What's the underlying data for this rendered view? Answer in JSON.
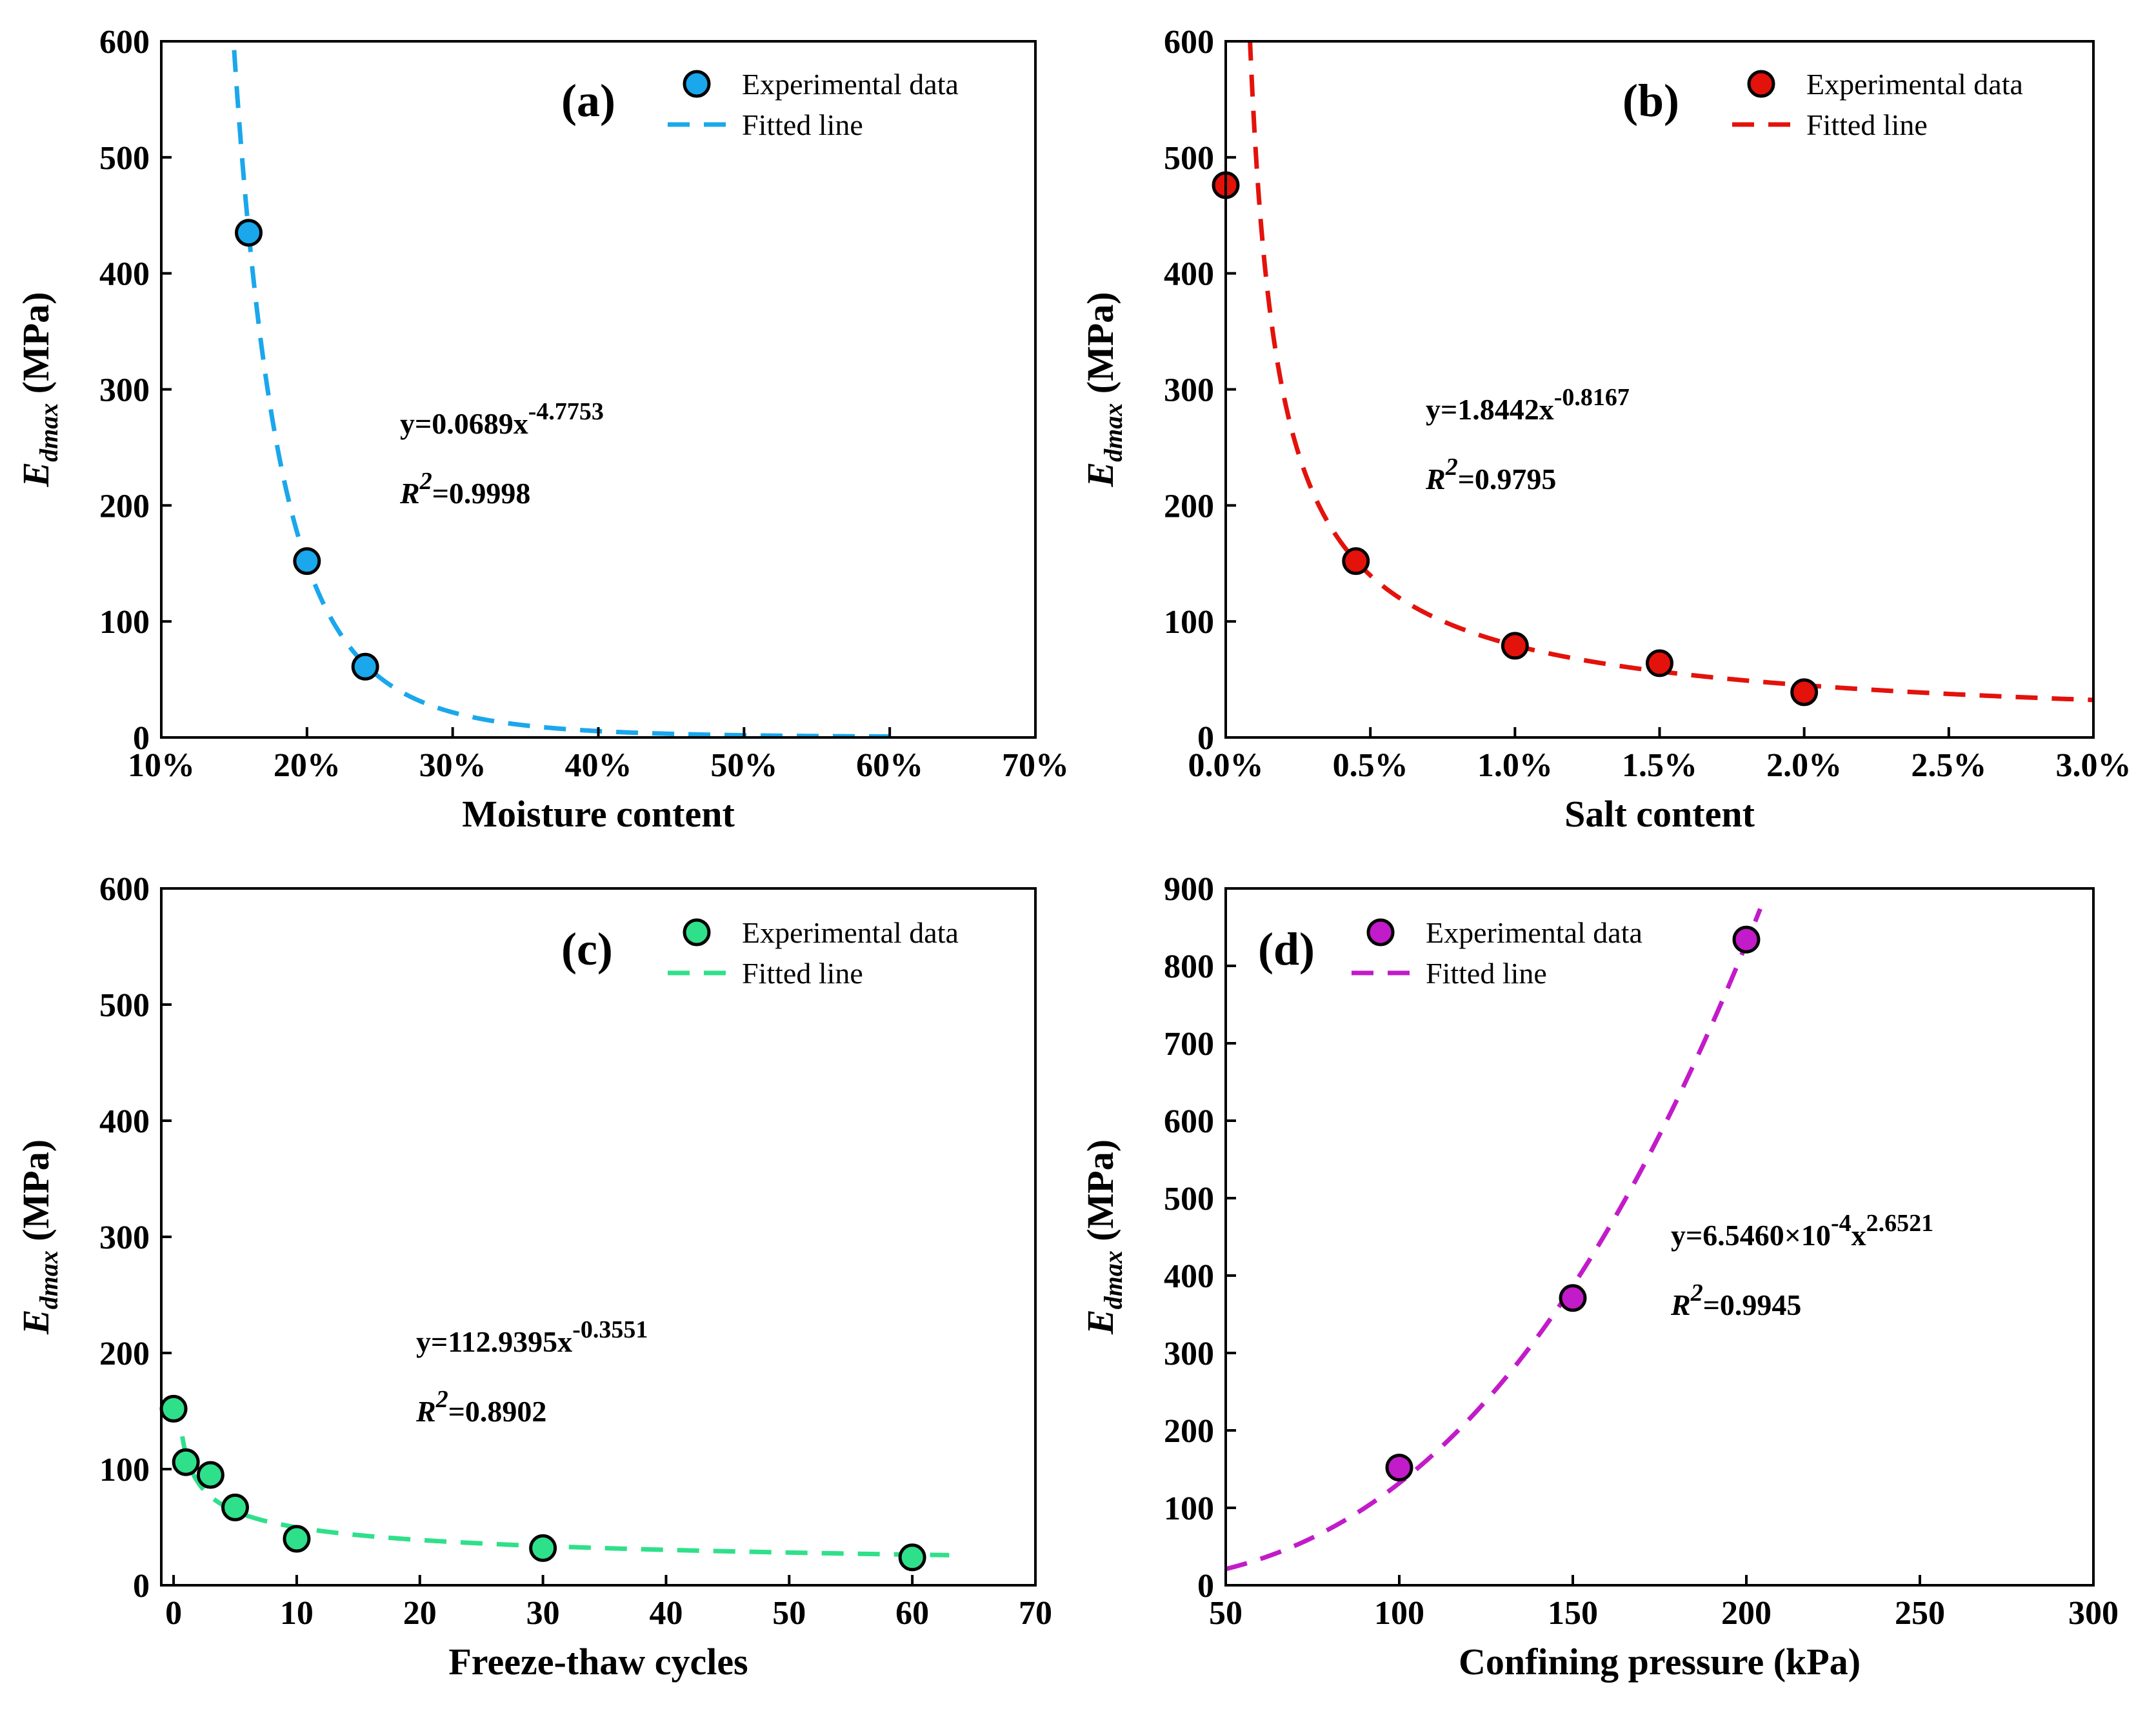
{
  "chart_data": [
    {
      "type": "scatter",
      "panel_label": "(a)",
      "xlabel": "Moisture content",
      "ylabel_main": "E",
      "ylabel_sub": "dmax",
      "ylabel_unit": " (MPa)",
      "xlim": [
        10,
        70
      ],
      "ylim": [
        0,
        600
      ],
      "xticks": [
        10,
        20,
        30,
        40,
        50,
        60,
        70
      ],
      "xtick_labels": [
        "10%",
        "20%",
        "30%",
        "40%",
        "50%",
        "60%",
        "70%"
      ],
      "yticks": [
        0,
        100,
        200,
        300,
        400,
        500,
        600
      ],
      "ytick_labels": [
        "0",
        "100",
        "200",
        "300",
        "400",
        "500",
        "600"
      ],
      "color": "#1AA7EC",
      "legend": [
        "Experimental data",
        "Fitted line"
      ],
      "legend_position": "top-right",
      "series": [
        {
          "name": "Experimental data",
          "x": [
            16,
            20,
            24
          ],
          "y": [
            435,
            152,
            61
          ]
        },
        {
          "name": "Fitted line",
          "style": "dashed",
          "model": "power",
          "scale": 0.01,
          "a": 0.0689,
          "b": -4.7753,
          "x_range": [
            15,
            60
          ]
        }
      ],
      "equation": {
        "y_prefix": "y=0.0689x",
        "exp": "-4.7753",
        "r2_prefix": "R",
        "r2_sup": "2",
        "r2_value": "=0.9998"
      }
    },
    {
      "type": "scatter",
      "panel_label": "(b)",
      "xlabel": "Salt content",
      "ylabel_main": "E",
      "ylabel_sub": "dmax",
      "ylabel_unit": " (MPa)",
      "xlim": [
        0,
        3
      ],
      "ylim": [
        0,
        600
      ],
      "xticks": [
        0,
        0.5,
        1,
        1.5,
        2,
        2.5,
        3
      ],
      "xtick_labels": [
        "0.0%",
        "0.5%",
        "1.0%",
        "1.5%",
        "2.0%",
        "2.5%",
        "3.0%"
      ],
      "yticks": [
        0,
        100,
        200,
        300,
        400,
        500,
        600
      ],
      "ytick_labels": [
        "0",
        "100",
        "200",
        "300",
        "400",
        "500",
        "600"
      ],
      "color": "#E3120B",
      "legend": [
        "Experimental data",
        "Fitted line"
      ],
      "legend_position": "top-right",
      "series": [
        {
          "name": "Experimental data",
          "x": [
            0,
            0.45,
            1,
            1.5,
            2
          ],
          "y": [
            476,
            152,
            79,
            64,
            39
          ]
        },
        {
          "name": "Fitted line",
          "style": "dashed",
          "model": "power",
          "scale": 0.01,
          "a": 1.8442,
          "b": -0.8167,
          "x_range": [
            0.07,
            3
          ]
        }
      ],
      "equation": {
        "y_prefix": "y=1.8442x",
        "exp": "-0.8167",
        "r2_prefix": "R",
        "r2_sup": "2",
        "r2_value": "=0.9795"
      }
    },
    {
      "type": "scatter",
      "panel_label": "(c)",
      "xlabel": "Freeze-thaw cycles",
      "ylabel_main": "E",
      "ylabel_sub": "dmax",
      "ylabel_unit": " (MPa)",
      "xlim": [
        -1,
        70
      ],
      "ylim": [
        0,
        600
      ],
      "xticks": [
        0,
        10,
        20,
        30,
        40,
        50,
        60,
        70
      ],
      "xtick_labels": [
        "0",
        "10",
        "20",
        "30",
        "40",
        "50",
        "60",
        "70"
      ],
      "yticks": [
        0,
        100,
        200,
        300,
        400,
        500,
        600
      ],
      "ytick_labels": [
        "0",
        "100",
        "200",
        "300",
        "400",
        "500",
        "600"
      ],
      "color": "#2FE08A",
      "legend": [
        "Experimental data",
        "Fitted line"
      ],
      "legend_position": "top-right",
      "series": [
        {
          "name": "Experimental data",
          "x": [
            0,
            1,
            3,
            5,
            10,
            30,
            60
          ],
          "y": [
            152,
            106,
            95,
            67,
            40,
            32,
            24
          ]
        },
        {
          "name": "Fitted line",
          "style": "dashed",
          "model": "power",
          "scale": 1,
          "a": 112.9395,
          "b": -0.3551,
          "x_range": [
            0.7,
            63
          ]
        }
      ],
      "equation": {
        "y_prefix": "y=112.9395x",
        "exp": "-0.3551",
        "r2_prefix": "R",
        "r2_sup": "2",
        "r2_value": "=0.8902"
      }
    },
    {
      "type": "scatter",
      "panel_label": "(d)",
      "xlabel": "Confining pressure (kPa)",
      "ylabel_main": "E",
      "ylabel_sub": "dmax",
      "ylabel_unit": " (MPa)",
      "xlim": [
        50,
        300
      ],
      "ylim": [
        0,
        900
      ],
      "xticks": [
        50,
        100,
        150,
        200,
        250,
        300
      ],
      "xtick_labels": [
        "50",
        "100",
        "150",
        "200",
        "250",
        "300"
      ],
      "yticks": [
        0,
        100,
        200,
        300,
        400,
        500,
        600,
        700,
        800,
        900
      ],
      "ytick_labels": [
        "0",
        "100",
        "200",
        "300",
        "400",
        "500",
        "600",
        "700",
        "800",
        "900"
      ],
      "color": "#C21BC9",
      "legend": [
        "Experimental data",
        "Fitted line"
      ],
      "legend_position": "top-left",
      "series": [
        {
          "name": "Experimental data",
          "x": [
            100,
            150,
            200
          ],
          "y": [
            152,
            371,
            834
          ]
        },
        {
          "name": "Fitted line",
          "style": "dashed",
          "model": "power",
          "scale": 1,
          "a": 0.0006546,
          "b": 2.6521,
          "x_range": [
            50,
            204
          ]
        }
      ],
      "equation": {
        "y_prefix": "y=6.5460×10",
        "exp": "-4",
        "y_mid": "x",
        "exp2": "2.6521",
        "r2_prefix": "R",
        "r2_sup": "2",
        "r2_value": "=0.9945"
      }
    }
  ]
}
